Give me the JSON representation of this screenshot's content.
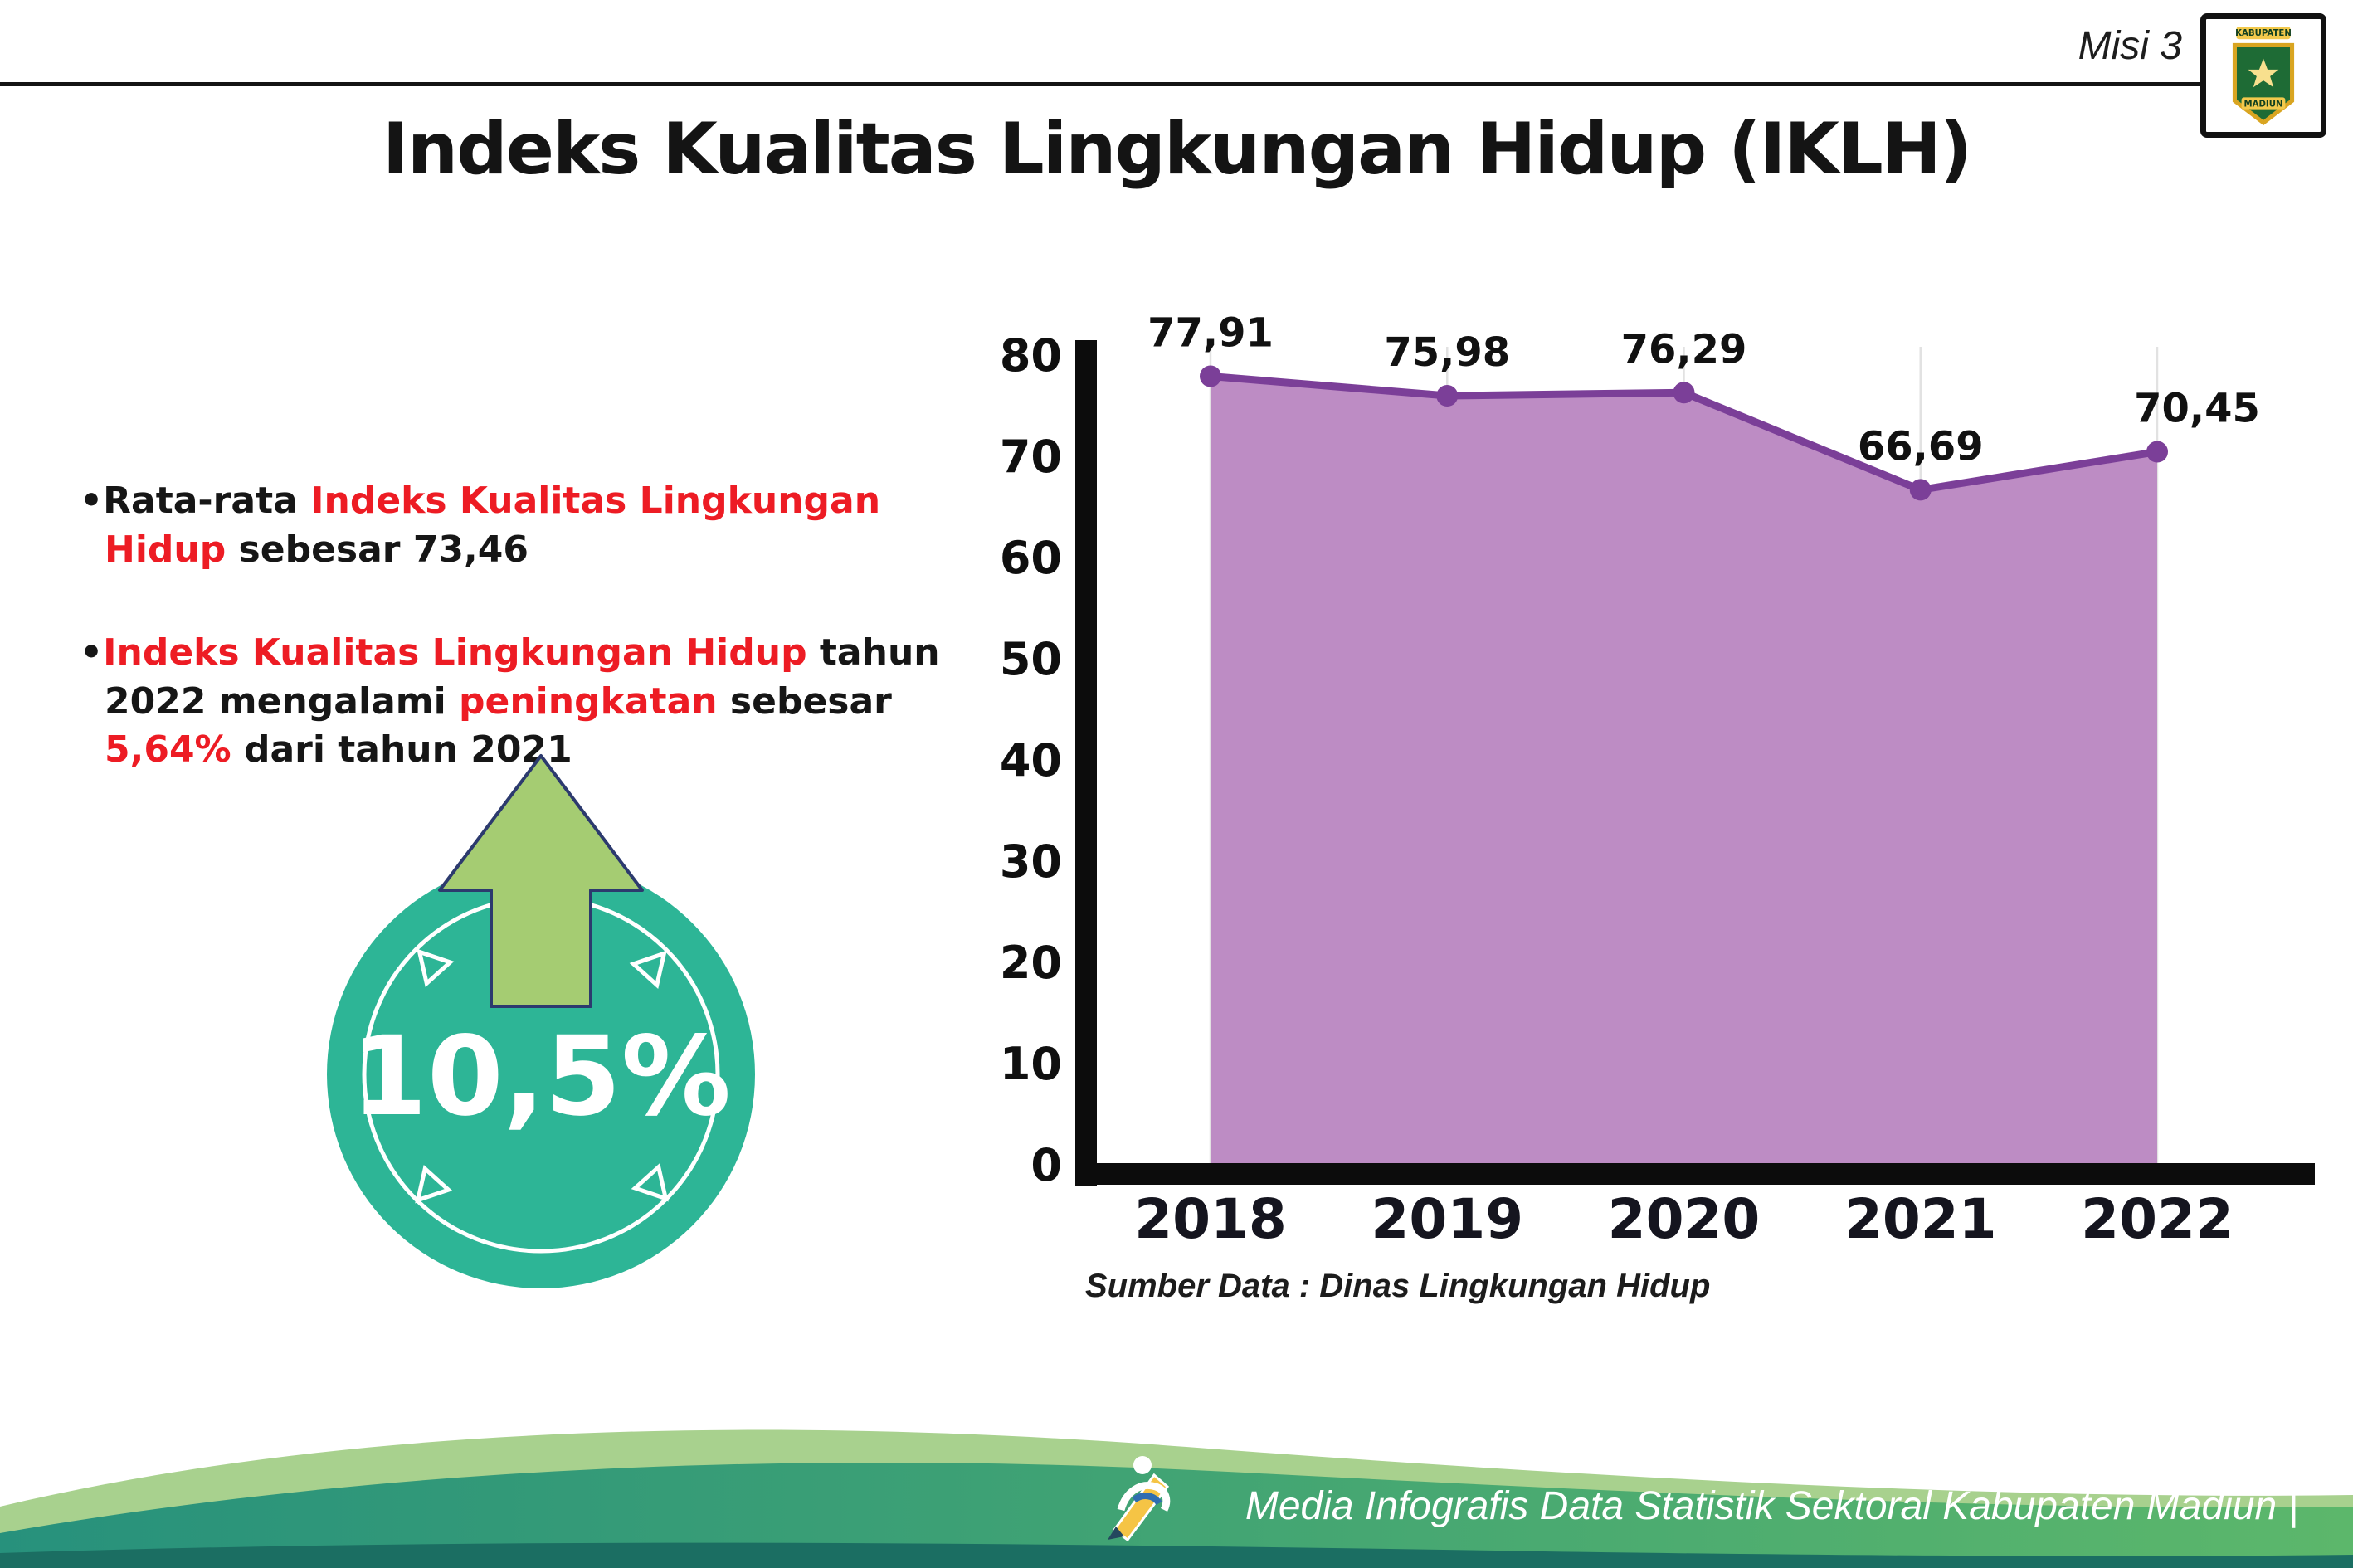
{
  "header": {
    "misi_label": "Misi 3",
    "title": "Indeks Kualitas Lingkungan Hidup (IKLH)",
    "logo": {
      "top_text": "KABUPATEN",
      "bottom_text": "MADIUN"
    }
  },
  "bullets": {
    "marker": "•",
    "item1": {
      "pre": "Rata-rata ",
      "highlight": "Indeks Kualitas Lingkungan Hidup",
      "post": " sebesar 73,46"
    },
    "item2": {
      "highlight1": "Indeks Kualitas Lingkungan Hidup",
      "mid1": " tahun 2022 mengalami ",
      "highlight2": "peningkatan",
      "mid2": " sebesar ",
      "highlight3": "5,64%",
      "post": " dari tahun 2021"
    }
  },
  "badge": {
    "value": "10,5%"
  },
  "chart_data": {
    "type": "area",
    "title": "Indeks Kualitas Lingkungan Hidup (IKLH)",
    "categories": [
      "2018",
      "2019",
      "2020",
      "2021",
      "2022"
    ],
    "values": [
      77.91,
      75.98,
      76.29,
      66.69,
      70.45
    ],
    "value_labels": [
      "77,91",
      "75,98",
      "76,29",
      "66,69",
      "70,45"
    ],
    "ylim": [
      0,
      80
    ],
    "yticks": [
      0,
      10,
      20,
      30,
      40,
      50,
      60,
      70,
      80
    ],
    "grid": "vertical-light",
    "legend": "none",
    "line_color": "#7b3f98",
    "marker_color": "#7b3f98",
    "fill_color": "#bd8cc4",
    "source": "Sumber Data : Dinas Lingkungan Hidup"
  },
  "footer": {
    "credit": "Media Infografis Data Statistik Sektoral Kabupaten Madiun |"
  },
  "colors": {
    "accent_red": "#ed1c24",
    "badge_teal": "#2db596",
    "arrow_green": "#a5cc72"
  }
}
